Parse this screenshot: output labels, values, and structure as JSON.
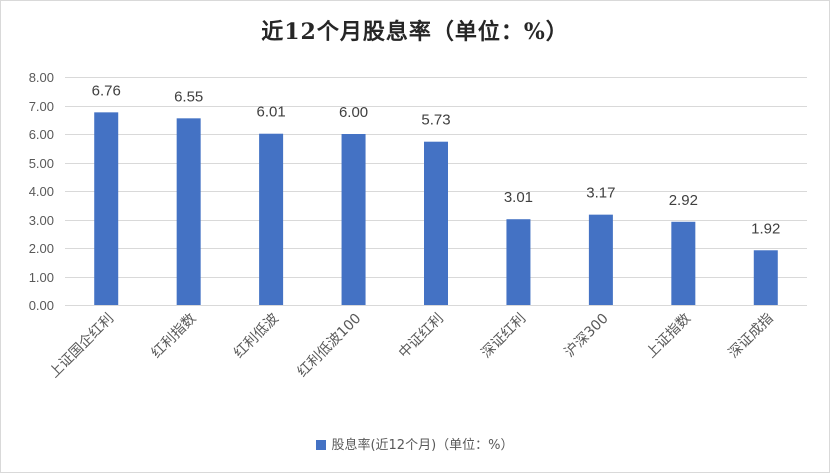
{
  "chart_data": {
    "type": "bar",
    "title": "近12个月股息率（单位：%）",
    "categories": [
      "上证国企红利",
      "红利指数",
      "红利低波",
      "红利低波100",
      "中证红利",
      "深证红利",
      "沪深300",
      "上证指数",
      "深证成指"
    ],
    "series": [
      {
        "name": "股息率(近12个月)（单位：%）",
        "values": [
          6.76,
          6.55,
          6.01,
          6.0,
          5.73,
          3.01,
          3.17,
          2.92,
          1.92
        ],
        "labels": [
          "6.76",
          "6.55",
          "6.01",
          "6.00",
          "5.73",
          "3.01",
          "3.17",
          "2.92",
          "1.92"
        ],
        "color": "#4472c4"
      }
    ],
    "ylim": [
      0,
      8
    ],
    "yticks": [
      "0.00",
      "1.00",
      "2.00",
      "3.00",
      "4.00",
      "5.00",
      "6.00",
      "7.00",
      "8.00"
    ],
    "xlabel": "",
    "ylabel": "",
    "grid": true,
    "legend_position": "bottom"
  }
}
